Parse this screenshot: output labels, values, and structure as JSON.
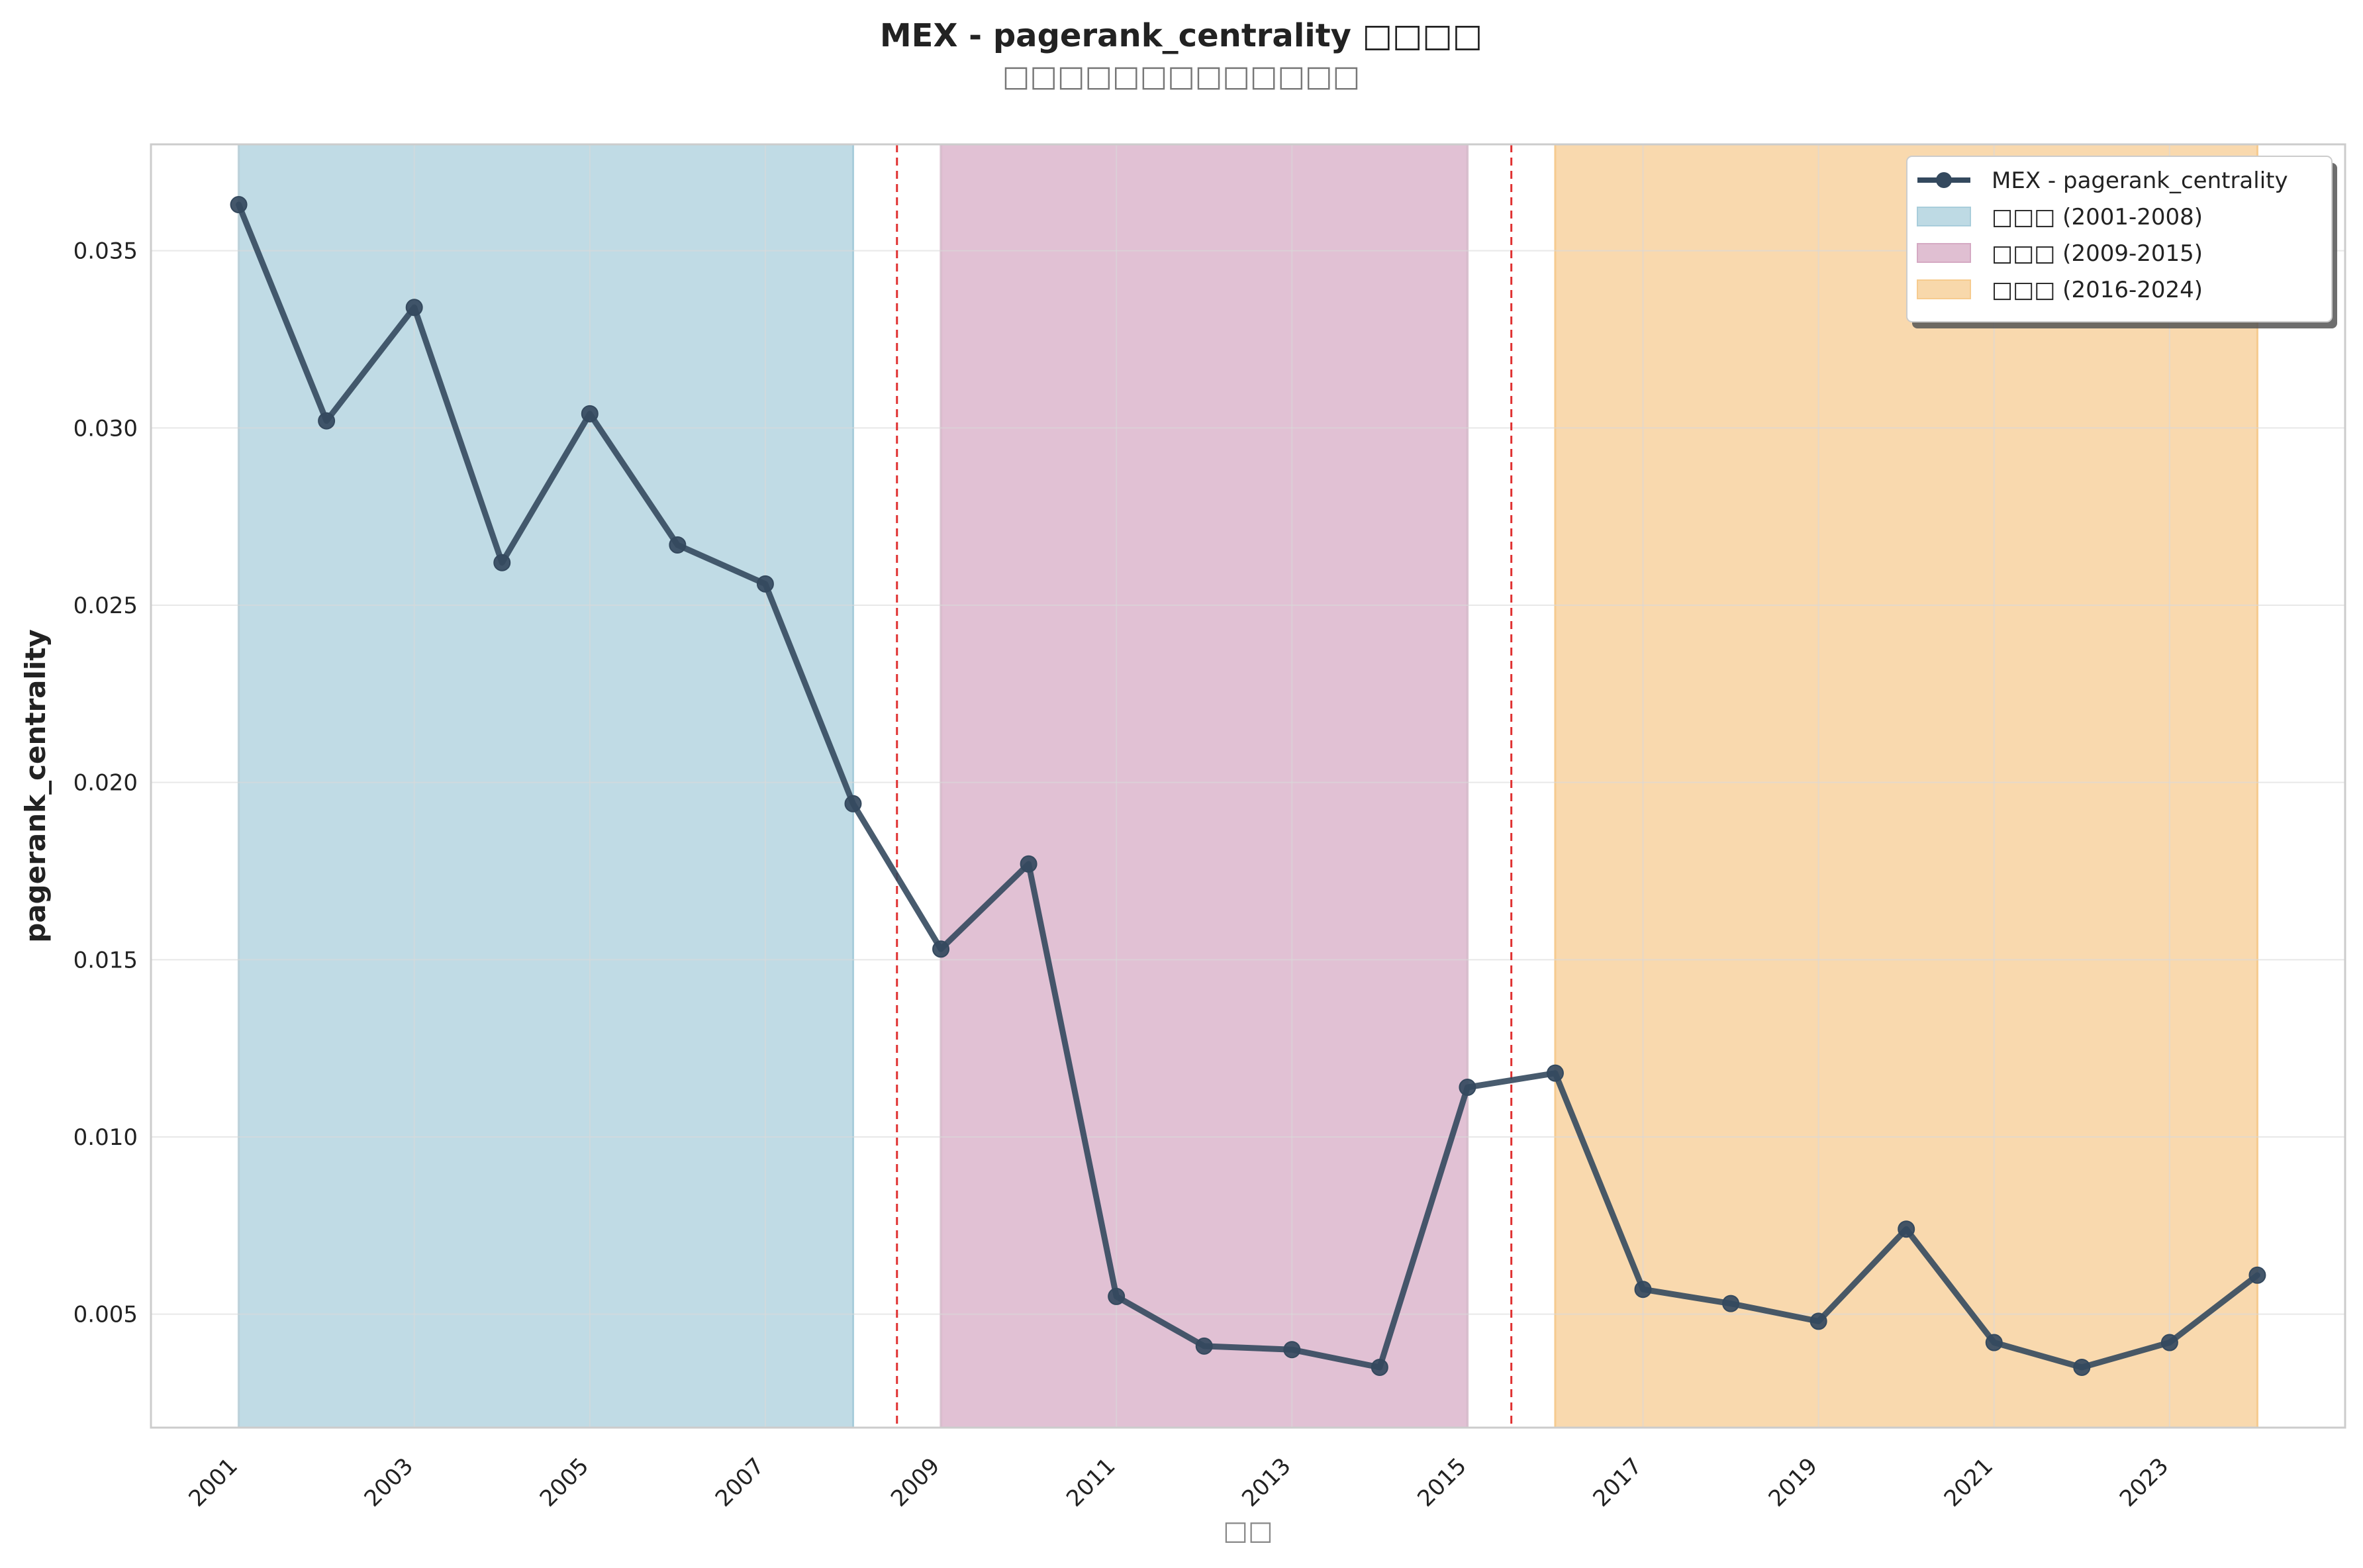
{
  "chart_data": {
    "type": "line",
    "title": "MEX - pagerank_centrality □□□□",
    "subtitle": "□□□□□□□□□□□□□",
    "xlabel": "□□",
    "ylabel": "pagerank_centrality",
    "x": [
      2001,
      2002,
      2003,
      2004,
      2005,
      2006,
      2007,
      2008,
      2009,
      2010,
      2011,
      2012,
      2013,
      2014,
      2015,
      2016,
      2017,
      2018,
      2019,
      2020,
      2021,
      2022,
      2023,
      2024
    ],
    "series": [
      {
        "name": "MEX - pagerank_centrality",
        "color": "#34495e",
        "values": [
          0.0363,
          0.0302,
          0.0334,
          0.0262,
          0.0304,
          0.0267,
          0.0256,
          0.0194,
          0.0153,
          0.0177,
          0.0055,
          0.0041,
          0.004,
          0.0035,
          0.0114,
          0.0118,
          0.0057,
          0.0053,
          0.0048,
          0.0074,
          0.0042,
          0.0035,
          0.0042,
          0.0061
        ]
      }
    ],
    "periods": [
      {
        "label": "□□□ (2001-2008)",
        "start": 2001,
        "end": 2008,
        "color": "#a8cddb"
      },
      {
        "label": "□□□ (2009-2015)",
        "start": 2009,
        "end": 2015,
        "color": "#d5a9c3"
      },
      {
        "label": "□□□ (2016-2024)",
        "start": 2016,
        "end": 2024,
        "color": "#f6cb8f"
      }
    ],
    "breakpoints": [
      2008.5,
      2015.5
    ],
    "breakpoint_color": "#e03131",
    "xlim": [
      2000,
      2025
    ],
    "ylim": [
      0.0018,
      0.038
    ],
    "xticks": [
      2001,
      2003,
      2005,
      2007,
      2009,
      2011,
      2013,
      2015,
      2017,
      2019,
      2021,
      2023
    ],
    "yticks": [
      0.005,
      0.01,
      0.015,
      0.02,
      0.025,
      0.03,
      0.035
    ],
    "ytick_labels": [
      "0.005",
      "0.010",
      "0.015",
      "0.020",
      "0.025",
      "0.030",
      "0.035"
    ],
    "grid": true,
    "legend_position": "top-right"
  }
}
